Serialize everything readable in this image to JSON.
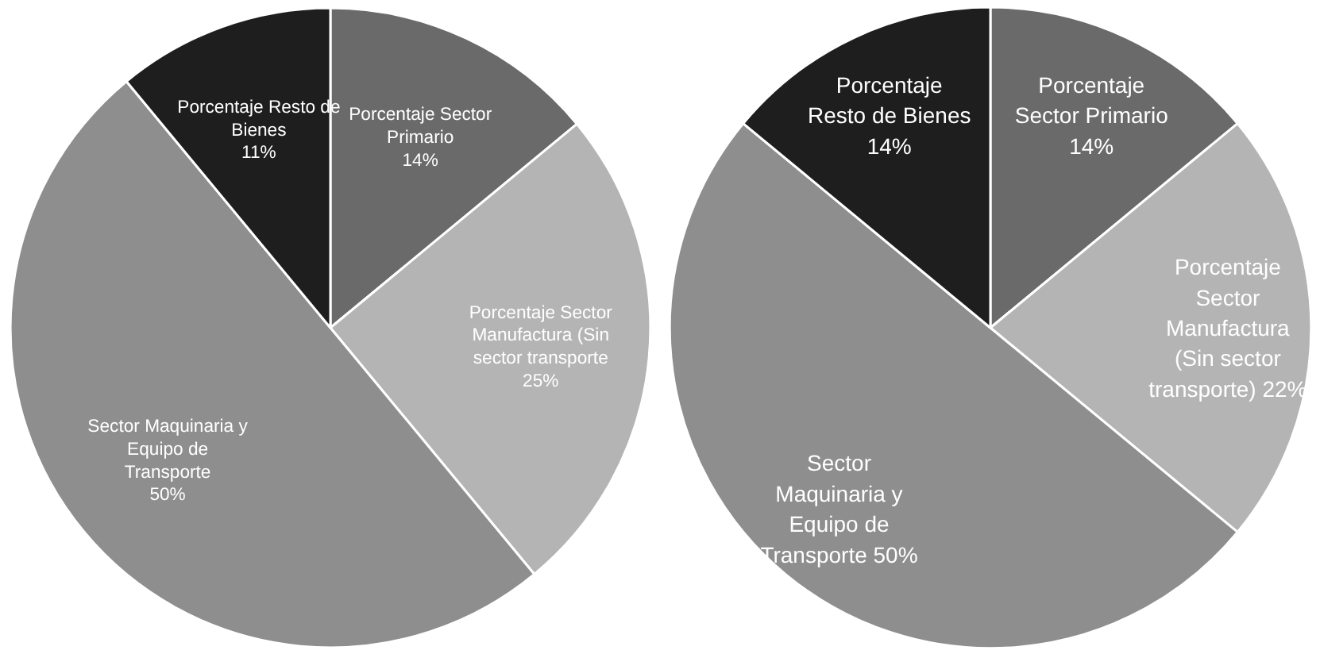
{
  "chart_data": [
    {
      "type": "pie",
      "categories": [
        "Porcentaje Sector Primario",
        "Porcentaje Sector Manufactura (Sin sector transporte",
        "Sector Maquinaria y Equipo de Transporte",
        "Porcentaje Resto de Bienes"
      ],
      "values": [
        14,
        25,
        50,
        11
      ],
      "colors": [
        "#6a6a6a",
        "#b4b4b4",
        "#8e8e8e",
        "#1e1e1e"
      ],
      "value_labels": [
        "14%",
        "25%",
        "50%",
        "11%"
      ]
    },
    {
      "type": "pie",
      "categories": [
        "Porcentaje Sector Primario",
        "Porcentaje Sector Manufactura (Sin sector transporte)",
        "Sector Maquinaria y Equipo de Transporte",
        "Porcentaje Resto de Bienes"
      ],
      "values": [
        14,
        22,
        50,
        14
      ],
      "colors": [
        "#6a6a6a",
        "#b4b4b4",
        "#8e8e8e",
        "#1e1e1e"
      ],
      "value_labels": [
        "14%",
        "22%",
        "50%",
        "14%"
      ]
    }
  ]
}
